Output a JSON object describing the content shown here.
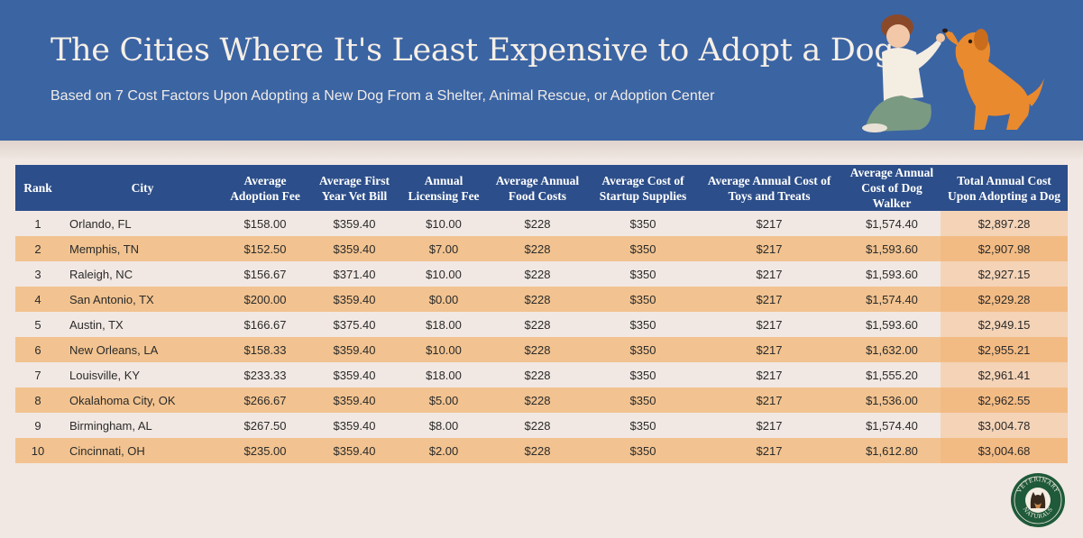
{
  "header": {
    "title": "The Cities Where It's Least Expensive to Adopt a Dog",
    "subtitle": "Based on 7 Cost Factors Upon Adopting a New Dog From a Shelter, Animal Rescue, or Adoption Center"
  },
  "illustration": {
    "icon": "person-high-fiving-dog-illustration"
  },
  "table": {
    "headers": [
      "Rank",
      "City",
      "Average Adoption Fee",
      "Average First Year Vet Bill",
      "Annual Licensing Fee",
      "Average Annual Food Costs",
      "Average Cost of Startup Supplies",
      "Average Annual Cost of Toys and Treats",
      "Average Annual Cost of Dog Walker",
      "Total Annual Cost Upon Adopting a Dog"
    ],
    "rows": [
      [
        "1",
        "Orlando, FL",
        "$158.00",
        "$359.40",
        "$10.00",
        "$228",
        "$350",
        "$217",
        "$1,574.40",
        "$2,897.28"
      ],
      [
        "2",
        "Memphis, TN",
        "$152.50",
        "$359.40",
        "$7.00",
        "$228",
        "$350",
        "$217",
        "$1,593.60",
        "$2,907.98"
      ],
      [
        "3",
        "Raleigh, NC",
        "$156.67",
        "$371.40",
        "$10.00",
        "$228",
        "$350",
        "$217",
        "$1,593.60",
        "$2,927.15"
      ],
      [
        "4",
        "San Antonio, TX",
        "$200.00",
        "$359.40",
        "$0.00",
        "$228",
        "$350",
        "$217",
        "$1,574.40",
        "$2,929.28"
      ],
      [
        "5",
        "Austin, TX",
        "$166.67",
        "$375.40",
        "$18.00",
        "$228",
        "$350",
        "$217",
        "$1,593.60",
        "$2,949.15"
      ],
      [
        "6",
        "New Orleans, LA",
        "$158.33",
        "$359.40",
        "$10.00",
        "$228",
        "$350",
        "$217",
        "$1,632.00",
        "$2,955.21"
      ],
      [
        "7",
        "Louisville, KY",
        "$233.33",
        "$359.40",
        "$18.00",
        "$228",
        "$350",
        "$217",
        "$1,555.20",
        "$2,961.41"
      ],
      [
        "8",
        "Okalahoma City, OK",
        "$266.67",
        "$359.40",
        "$5.00",
        "$228",
        "$350",
        "$217",
        "$1,536.00",
        "$2,962.55"
      ],
      [
        "9",
        "Birmingham, AL",
        "$267.50",
        "$359.40",
        "$8.00",
        "$228",
        "$350",
        "$217",
        "$1,574.40",
        "$3,004.78"
      ],
      [
        "10",
        "Cincinnati, OH",
        "$235.00",
        "$359.40",
        "$2.00",
        "$228",
        "$350",
        "$217",
        "$1,612.80",
        "$3,004.68"
      ]
    ]
  },
  "logo": {
    "text": "VETERINARY NATURALS",
    "icon": "dog-portrait-logo"
  },
  "colors": {
    "header_bg": "#3b64a3",
    "table_header_bg": "#2c4e8a",
    "row_light": "#f1e8e3",
    "row_orange": "#f2c390",
    "total_light": "#f4d3b7",
    "total_orange": "#f3bb84",
    "logo_green": "#1f5a3a"
  }
}
